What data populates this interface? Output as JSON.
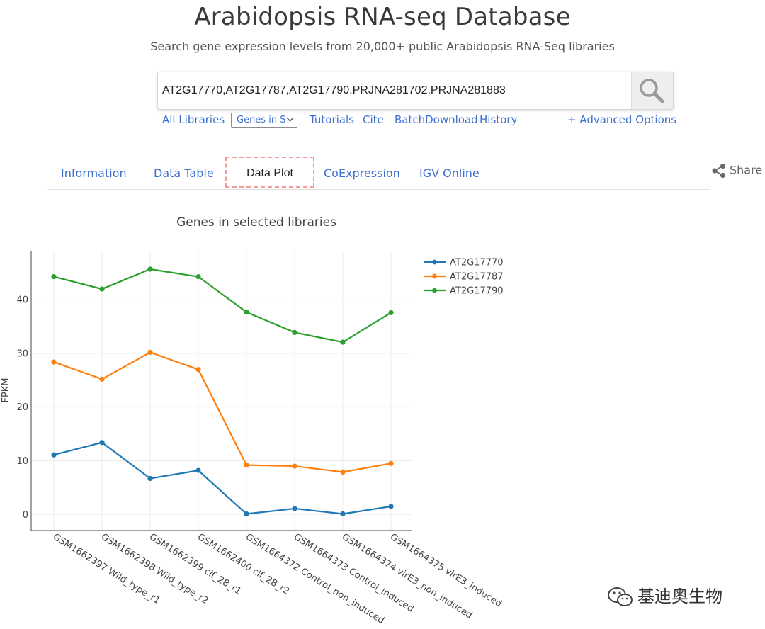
{
  "header": {
    "title": "Arabidopsis RNA-seq Database",
    "subtitle": "Search gene expression levels from 20,000+ public Arabidopsis RNA-Seq libraries"
  },
  "search": {
    "value": "AT2G17770,AT2G17787,AT2G17790,PRJNA281702,PRJNA281883",
    "button_icon": "search-icon"
  },
  "links": {
    "all_libraries": "All Libraries",
    "genes_select": "Genes in Se",
    "tutorials": "Tutorials",
    "cite": "Cite",
    "batch_download": "BatchDownload",
    "history": "History",
    "advanced": "+ Advanced Options"
  },
  "tabs": [
    {
      "label": "Information"
    },
    {
      "label": "Data Table"
    },
    {
      "label": "Data Plot",
      "active": true
    },
    {
      "label": "CoExpression"
    },
    {
      "label": "IGV Online"
    }
  ],
  "share": {
    "label": "Share",
    "icon": "share-icon"
  },
  "colors": {
    "link": "#3d6fcf",
    "active_tab_border": "#f29b9b"
  },
  "chart_data": {
    "type": "line",
    "title": "Genes in selected libraries",
    "xlabel": "",
    "ylabel": "FPKM",
    "ylim": [
      -3,
      49
    ],
    "yticks": [
      0,
      10,
      20,
      30,
      40
    ],
    "grid": true,
    "legend_position": "top-right",
    "categories": [
      "GSM1662397 Wild_type_r1",
      "GSM1662398 Wild_type_r2",
      "GSM1662399 clf_28_r1",
      "GSM1662400 clf_28_r2",
      "GSM1664372 Control_non_induced",
      "GSM1664373 Control_induced",
      "GSM1664374 virE3_non_induced",
      "GSM1664375 virE3_induced"
    ],
    "series": [
      {
        "name": "AT2G17770",
        "color": "#1f77b4",
        "values": [
          11.1,
          13.4,
          6.7,
          8.2,
          0.1,
          1.1,
          0.1,
          1.5
        ]
      },
      {
        "name": "AT2G17787",
        "color": "#ff7f0e",
        "values": [
          28.4,
          25.2,
          30.2,
          27.0,
          9.2,
          9.0,
          7.9,
          9.5
        ]
      },
      {
        "name": "AT2G17790",
        "color": "#2ca02c",
        "values": [
          44.3,
          42.0,
          45.7,
          44.3,
          37.7,
          33.9,
          32.1,
          37.6
        ]
      }
    ]
  },
  "watermark": {
    "text": "基迪奥生物",
    "icon": "wechat-icon"
  }
}
